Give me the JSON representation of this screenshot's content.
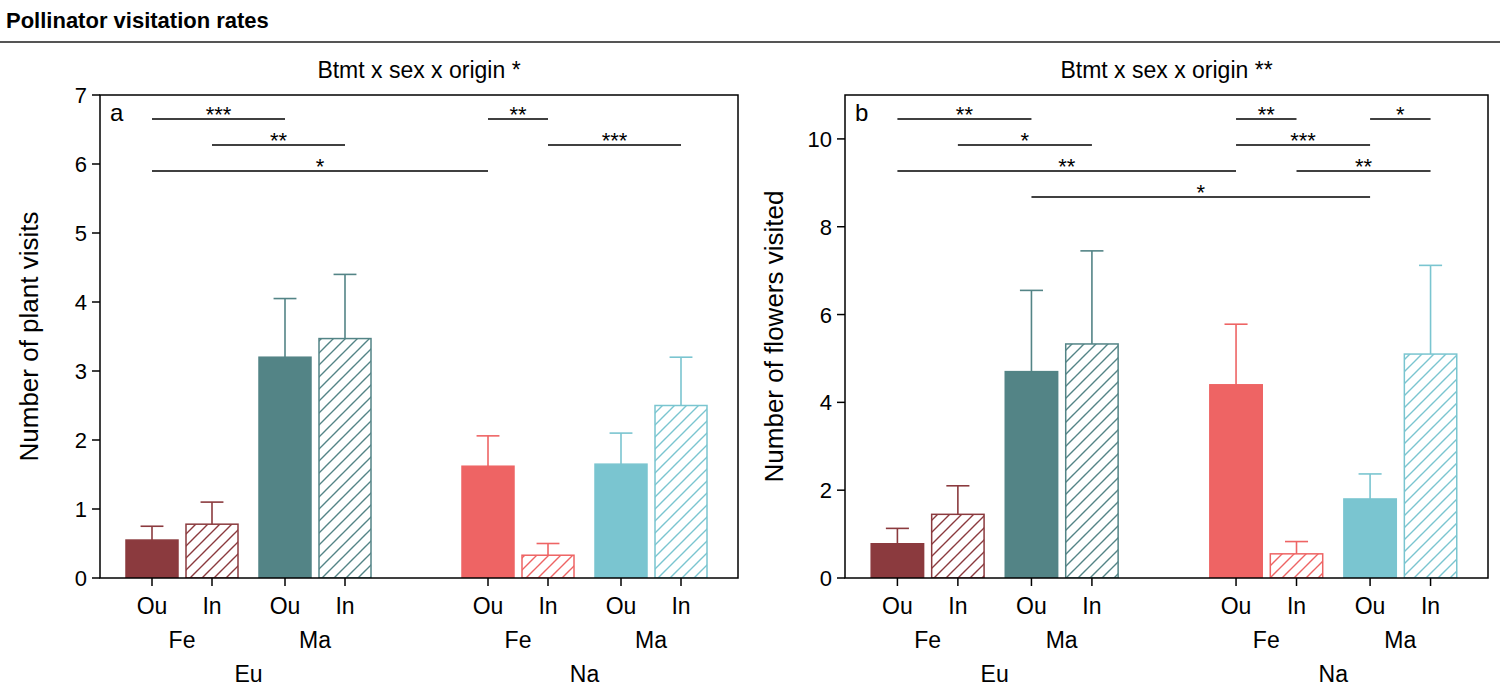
{
  "figure_title": "Pollinator visitation rates",
  "chart_data": [
    {
      "type": "bar",
      "panel_label": "a",
      "title": "Btmt x sex x origin *",
      "y_label": "Number of plant visits",
      "categories": [
        "Ou",
        "In",
        "Ou",
        "In",
        "Ou",
        "In",
        "Ou",
        "In"
      ],
      "sex_labels": [
        "Fe",
        "Ma",
        "Fe",
        "Ma"
      ],
      "origin_labels": [
        "Eu",
        "Na"
      ],
      "values": [
        0.55,
        0.78,
        3.2,
        3.47,
        1.62,
        0.33,
        1.65,
        2.5
      ],
      "errors": [
        0.2,
        0.32,
        0.85,
        0.93,
        0.44,
        0.17,
        0.45,
        0.7
      ],
      "colors": [
        "#8b3a3e",
        "#8b3a3e",
        "#538486",
        "#538486",
        "#ee6464",
        "#ee6464",
        "#7ac5d0",
        "#7ac5d0"
      ],
      "ylim": [
        0,
        7
      ],
      "yticks": [
        0,
        1,
        2,
        3,
        4,
        5,
        6,
        7
      ],
      "annotations": [
        {
          "from": 4,
          "to": 5,
          "label": "**"
        },
        {
          "from": 0,
          "to": 2,
          "label": "***"
        },
        {
          "from": 5,
          "to": 7,
          "label": "***"
        },
        {
          "from": 1,
          "to": 3,
          "label": "**"
        },
        {
          "from": 0,
          "to": 4,
          "label": "*"
        }
      ]
    },
    {
      "type": "bar",
      "panel_label": "b",
      "title": "Btmt x sex x origin **",
      "y_label": "Number of flowers visited",
      "categories": [
        "Ou",
        "In",
        "Ou",
        "In",
        "Ou",
        "In",
        "Ou",
        "In"
      ],
      "sex_labels": [
        "Fe",
        "Ma",
        "Fe",
        "Ma"
      ],
      "origin_labels": [
        "Eu",
        "Na"
      ],
      "values": [
        0.78,
        1.45,
        4.7,
        5.33,
        4.4,
        0.55,
        1.8,
        5.1
      ],
      "errors": [
        0.35,
        0.65,
        1.85,
        2.12,
        1.38,
        0.28,
        0.57,
        2.02
      ],
      "colors": [
        "#8b3a3e",
        "#8b3a3e",
        "#538486",
        "#538486",
        "#ee6464",
        "#ee6464",
        "#7ac5d0",
        "#7ac5d0"
      ],
      "ylim": [
        0,
        11
      ],
      "yticks": [
        0,
        2,
        4,
        6,
        8,
        10
      ],
      "annotations": [
        {
          "from": 4,
          "to": 5,
          "label": "**"
        },
        {
          "from": 6,
          "to": 7,
          "label": "*"
        },
        {
          "from": 0,
          "to": 2,
          "label": "**"
        },
        {
          "from": 4,
          "to": 6,
          "label": "***"
        },
        {
          "from": 1,
          "to": 3,
          "label": "*"
        },
        {
          "from": 5,
          "to": 7,
          "label": "**"
        },
        {
          "from": 0,
          "to": 4,
          "label": "**"
        },
        {
          "from": 2,
          "to": 6,
          "label": "*"
        }
      ]
    }
  ]
}
